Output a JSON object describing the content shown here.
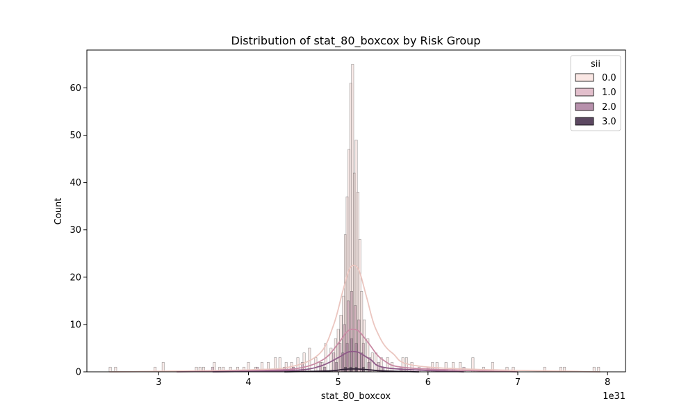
{
  "chart_data": {
    "type": "histogram",
    "title": "Distribution of stat_80_boxcox by Risk Group",
    "xlabel": "stat_80_boxcox",
    "ylabel": "Count",
    "x_offset_label": "1e31",
    "xlim": [
      2.2,
      8.2
    ],
    "ylim": [
      0,
      68
    ],
    "x_ticks": [
      3,
      4,
      5,
      6,
      7,
      8
    ],
    "y_ticks": [
      0,
      10,
      20,
      30,
      40,
      50,
      60
    ],
    "grid": false,
    "legend": {
      "title": "sii",
      "position": "top-right",
      "entries": [
        {
          "label": "0.0",
          "color": "#fae7e4"
        },
        {
          "label": "1.0",
          "color": "#e2bfcc"
        },
        {
          "label": "2.0",
          "color": "#b791ac"
        },
        {
          "label": "3.0",
          "color": "#5c4861"
        }
      ]
    },
    "series": [
      {
        "name": "0.0",
        "fill": "#f2d9d6",
        "line_color": "#ebc6c0",
        "kde": {
          "x": [
            2.45,
            4.0,
            4.5,
            4.8,
            4.95,
            5.05,
            5.12,
            5.18,
            5.24,
            5.32,
            5.42,
            5.6,
            6.0,
            7.92
          ],
          "y": [
            0,
            0.4,
            1.2,
            4.0,
            10.0,
            17.0,
            21.5,
            22.5,
            21.0,
            15.5,
            9.0,
            4.0,
            1.0,
            0
          ]
        },
        "bars": [
          {
            "x": 2.46,
            "h": 1
          },
          {
            "x": 2.52,
            "h": 1
          },
          {
            "x": 2.96,
            "h": 1
          },
          {
            "x": 3.05,
            "h": 2
          },
          {
            "x": 3.42,
            "h": 1
          },
          {
            "x": 3.46,
            "h": 1
          },
          {
            "x": 3.5,
            "h": 1
          },
          {
            "x": 3.62,
            "h": 2
          },
          {
            "x": 3.68,
            "h": 1
          },
          {
            "x": 3.72,
            "h": 1
          },
          {
            "x": 3.8,
            "h": 1
          },
          {
            "x": 3.88,
            "h": 1
          },
          {
            "x": 3.95,
            "h": 1
          },
          {
            "x": 4.0,
            "h": 2
          },
          {
            "x": 4.08,
            "h": 1
          },
          {
            "x": 4.15,
            "h": 2
          },
          {
            "x": 4.22,
            "h": 2
          },
          {
            "x": 4.3,
            "h": 3
          },
          {
            "x": 4.35,
            "h": 3
          },
          {
            "x": 4.42,
            "h": 2
          },
          {
            "x": 4.48,
            "h": 2
          },
          {
            "x": 4.55,
            "h": 3
          },
          {
            "x": 4.62,
            "h": 4
          },
          {
            "x": 4.68,
            "h": 5
          },
          {
            "x": 4.75,
            "h": 3
          },
          {
            "x": 4.82,
            "h": 2
          },
          {
            "x": 4.86,
            "h": 6
          },
          {
            "x": 4.92,
            "h": 5
          },
          {
            "x": 4.97,
            "h": 7
          },
          {
            "x": 5.0,
            "h": 9
          },
          {
            "x": 5.03,
            "h": 12
          },
          {
            "x": 5.06,
            "h": 16
          },
          {
            "x": 5.08,
            "h": 29
          },
          {
            "x": 5.1,
            "h": 37
          },
          {
            "x": 5.12,
            "h": 47
          },
          {
            "x": 5.14,
            "h": 61
          },
          {
            "x": 5.16,
            "h": 65
          },
          {
            "x": 5.18,
            "h": 42
          },
          {
            "x": 5.2,
            "h": 49
          },
          {
            "x": 5.22,
            "h": 38
          },
          {
            "x": 5.24,
            "h": 28
          },
          {
            "x": 5.26,
            "h": 17
          },
          {
            "x": 5.29,
            "h": 11
          },
          {
            "x": 5.33,
            "h": 7
          },
          {
            "x": 5.38,
            "h": 4
          },
          {
            "x": 5.42,
            "h": 4
          },
          {
            "x": 5.48,
            "h": 3
          },
          {
            "x": 5.55,
            "h": 3
          },
          {
            "x": 5.6,
            "h": 2
          },
          {
            "x": 5.72,
            "h": 3
          },
          {
            "x": 5.76,
            "h": 3
          },
          {
            "x": 5.82,
            "h": 2
          },
          {
            "x": 5.9,
            "h": 1
          },
          {
            "x": 6.05,
            "h": 2
          },
          {
            "x": 6.1,
            "h": 2
          },
          {
            "x": 6.2,
            "h": 2
          },
          {
            "x": 6.28,
            "h": 2
          },
          {
            "x": 6.36,
            "h": 2
          },
          {
            "x": 6.5,
            "h": 3
          },
          {
            "x": 6.62,
            "h": 1
          },
          {
            "x": 6.72,
            "h": 2
          },
          {
            "x": 6.88,
            "h": 1
          },
          {
            "x": 6.95,
            "h": 1
          },
          {
            "x": 7.3,
            "h": 1
          },
          {
            "x": 7.48,
            "h": 1
          },
          {
            "x": 7.52,
            "h": 1
          },
          {
            "x": 7.85,
            "h": 1
          },
          {
            "x": 7.9,
            "h": 1
          }
        ]
      },
      {
        "name": "1.0",
        "fill": "#cfa3b6",
        "line_color": "#c98aa4",
        "kde": {
          "x": [
            3.2,
            4.2,
            4.6,
            4.85,
            5.0,
            5.1,
            5.17,
            5.24,
            5.34,
            5.5,
            5.8,
            7.0
          ],
          "y": [
            0,
            0.3,
            0.9,
            2.8,
            6.0,
            8.5,
            9.0,
            8.4,
            6.0,
            2.5,
            0.8,
            0
          ]
        },
        "bars": [
          {
            "x": 3.6,
            "h": 1
          },
          {
            "x": 4.1,
            "h": 1
          },
          {
            "x": 4.4,
            "h": 1
          },
          {
            "x": 4.6,
            "h": 2
          },
          {
            "x": 4.8,
            "h": 2
          },
          {
            "x": 4.95,
            "h": 4
          },
          {
            "x": 5.02,
            "h": 6
          },
          {
            "x": 5.07,
            "h": 10
          },
          {
            "x": 5.11,
            "h": 15
          },
          {
            "x": 5.15,
            "h": 17
          },
          {
            "x": 5.19,
            "h": 14
          },
          {
            "x": 5.23,
            "h": 11
          },
          {
            "x": 5.28,
            "h": 6
          },
          {
            "x": 5.35,
            "h": 3
          },
          {
            "x": 5.45,
            "h": 2
          },
          {
            "x": 5.7,
            "h": 1
          },
          {
            "x": 6.0,
            "h": 1
          },
          {
            "x": 6.4,
            "h": 1
          }
        ]
      },
      {
        "name": "2.0",
        "fill": "#a07895",
        "line_color": "#8e5a88",
        "kde": {
          "x": [
            3.6,
            4.5,
            4.8,
            5.0,
            5.1,
            5.17,
            5.24,
            5.36,
            5.55,
            6.4
          ],
          "y": [
            0,
            0.3,
            1.2,
            3.0,
            4.1,
            4.3,
            4.0,
            2.6,
            0.8,
            0
          ]
        },
        "bars": [
          {
            "x": 4.5,
            "h": 1
          },
          {
            "x": 4.85,
            "h": 1
          },
          {
            "x": 4.98,
            "h": 2
          },
          {
            "x": 5.05,
            "h": 4
          },
          {
            "x": 5.1,
            "h": 6
          },
          {
            "x": 5.15,
            "h": 7
          },
          {
            "x": 5.2,
            "h": 6
          },
          {
            "x": 5.26,
            "h": 4
          },
          {
            "x": 5.34,
            "h": 2
          },
          {
            "x": 5.5,
            "h": 1
          }
        ]
      },
      {
        "name": "3.0",
        "fill": "#4a3a4d",
        "line_color": "#2d1e34",
        "kde": {
          "x": [
            4.4,
            4.9,
            5.05,
            5.17,
            5.3,
            5.5,
            5.9
          ],
          "y": [
            0,
            0.2,
            0.5,
            0.6,
            0.5,
            0.2,
            0
          ]
        },
        "bars": [
          {
            "x": 5.08,
            "h": 1
          },
          {
            "x": 5.14,
            "h": 1
          },
          {
            "x": 5.2,
            "h": 1
          },
          {
            "x": 5.28,
            "h": 1
          }
        ]
      }
    ]
  }
}
